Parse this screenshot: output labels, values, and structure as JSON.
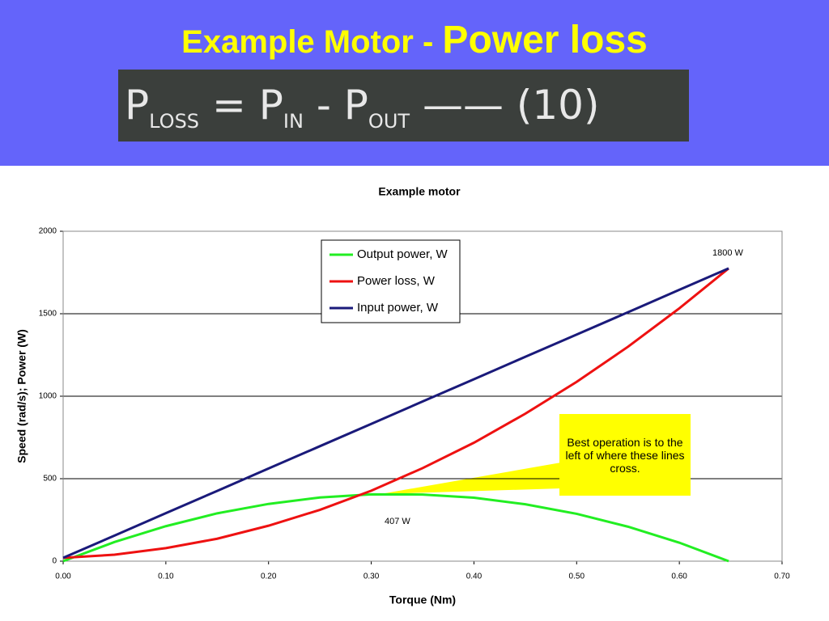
{
  "header": {
    "title": "Example Motor -",
    "title_emphasis": "Power loss",
    "equation": [
      {
        "main": "P",
        "sub": "LOSS"
      },
      {
        "main": "= P",
        "sub": "IN"
      },
      {
        "main": "- P",
        "sub": "OUT"
      },
      {
        "main": "—— (10)",
        "sub": ""
      }
    ]
  },
  "chart_data": {
    "type": "line",
    "title": "Example motor",
    "x_label": "Torque  (Nm)",
    "y_label": "Speed (rad/s);  Power (W)",
    "x": [
      0,
      0.05,
      0.1,
      0.15,
      0.2,
      0.25,
      0.3,
      0.35,
      0.4,
      0.45,
      0.5,
      0.55,
      0.6,
      0.648
    ],
    "series": [
      {
        "name": "Output power, W",
        "color": "#22ee22",
        "values": [
          0,
          116,
          212,
          290,
          347,
          386,
          405,
          404,
          385,
          345,
          287,
          209,
          112,
          0
        ]
      },
      {
        "name": "Power loss, W",
        "color": "#ee1111",
        "values": [
          20,
          39,
          79,
          136,
          215,
          311,
          427,
          564,
          718,
          894,
          1087,
          1300,
          1533,
          1775
        ]
      },
      {
        "name": "Input power, W",
        "color": "#1a1a7a",
        "values": [
          20,
          155,
          291,
          426,
          562,
          697,
          832,
          968,
          1103,
          1239,
          1374,
          1509,
          1645,
          1775
        ]
      }
    ],
    "xlim": [
      0,
      0.7
    ],
    "ylim": [
      0,
      2000
    ],
    "xticks": [
      {
        "value": 0,
        "label": "0.00"
      },
      {
        "value": 0.1,
        "label": "0.10"
      },
      {
        "value": 0.2,
        "label": "0.20"
      },
      {
        "value": 0.3,
        "label": "0.30"
      },
      {
        "value": 0.4,
        "label": "0.40"
      },
      {
        "value": 0.5,
        "label": "0.50"
      },
      {
        "value": 0.6,
        "label": "0.60"
      },
      {
        "value": 0.7,
        "label": "0.70"
      }
    ],
    "yticks": [
      0,
      500,
      1000,
      1500,
      2000
    ],
    "grid": true,
    "legend": "top",
    "annotations": [
      "1800 W",
      "407 W",
      "Best operation is to the left of where these lines cross."
    ]
  }
}
